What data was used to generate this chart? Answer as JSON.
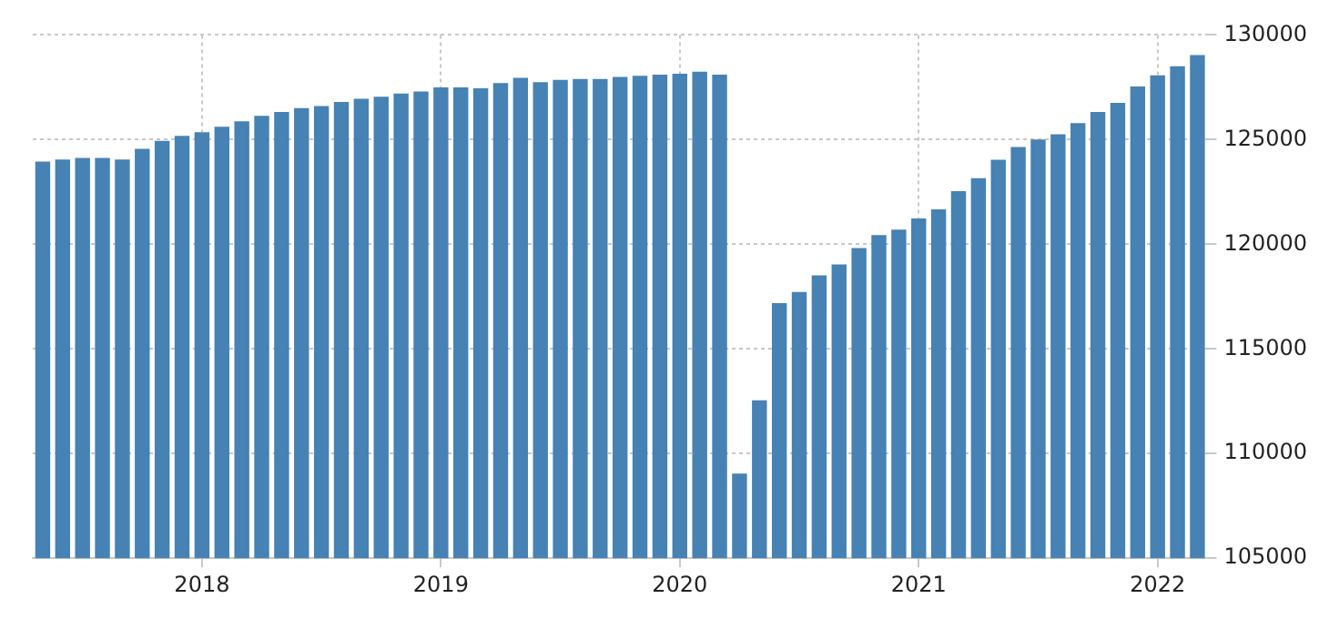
{
  "chart_data": {
    "type": "bar",
    "categories": [
      null,
      null,
      null,
      null,
      null,
      null,
      null,
      null,
      "2018",
      null,
      null,
      null,
      null,
      null,
      null,
      null,
      null,
      null,
      null,
      null,
      "2019",
      null,
      null,
      null,
      null,
      null,
      null,
      null,
      null,
      null,
      null,
      null,
      "2020",
      null,
      null,
      null,
      null,
      null,
      null,
      null,
      null,
      null,
      null,
      null,
      "2021",
      null,
      null,
      null,
      null,
      null,
      null,
      null,
      null,
      null,
      null,
      null,
      "2022",
      null,
      null
    ],
    "values": [
      123950,
      124050,
      124120,
      124120,
      124050,
      124560,
      124940,
      125180,
      125350,
      125610,
      125880,
      126140,
      126320,
      126500,
      126600,
      126800,
      126950,
      127050,
      127200,
      127300,
      127500,
      127500,
      127450,
      127700,
      127950,
      127750,
      127850,
      127900,
      127900,
      128000,
      128050,
      128100,
      128150,
      128250,
      128100,
      109040,
      112540,
      117190,
      117720,
      118510,
      119040,
      119820,
      120440,
      120700,
      121230,
      121670,
      122540,
      123160,
      124040,
      124650,
      125000,
      125260,
      125790,
      126320,
      126750,
      127540,
      128070,
      128510,
      129040
    ],
    "color": "#4682b4",
    "ylim": [
      105000,
      130000
    ],
    "yticks": [
      105000,
      110000,
      115000,
      120000,
      125000,
      130000
    ],
    "grid": true
  }
}
